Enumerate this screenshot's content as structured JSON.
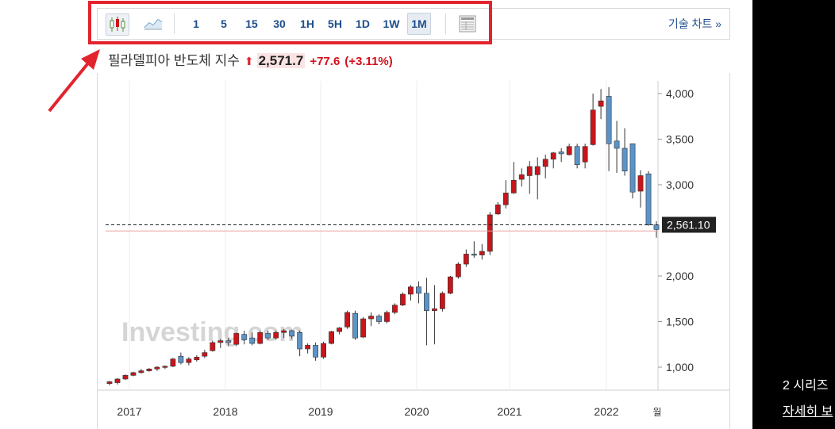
{
  "toolbar": {
    "intervals": [
      "1",
      "5",
      "15",
      "30",
      "1H",
      "5H",
      "1D",
      "1W",
      "1M"
    ],
    "active_interval": "1M",
    "tech_chart_label": "기술 차트 »",
    "icons": [
      "candlestick-icon",
      "line-chart-icon",
      "table-view-icon"
    ]
  },
  "header": {
    "name": "필라델피아 반도체 지수",
    "arrow": "⬆",
    "price": "2,571.7",
    "change": "+77.6",
    "change_pct": "(+3.11%)"
  },
  "colors": {
    "up": "#c8151b",
    "down": "#5b93c7",
    "highlight": "#e2242f"
  },
  "watermark": "Investing.com",
  "side": {
    "line1": "2 시리즈",
    "line2": "자세히 보"
  },
  "chart_data": {
    "type": "candlestick",
    "x_ticks": [
      "2017",
      "2018",
      "2019",
      "2020",
      "2021",
      "2022",
      "월"
    ],
    "y_ticks": [
      "4,000",
      "3,500",
      "3,000",
      "2,000",
      "1,500",
      "1,000"
    ],
    "y_tick_values": [
      4000,
      3500,
      3000,
      2000,
      1500,
      1000
    ],
    "ylim": [
      700,
      4250
    ],
    "last_price_label": "2,561.10",
    "last_price": 2561.1,
    "prev_close": 2494,
    "candles": [
      {
        "o": 820,
        "h": 850,
        "l": 800,
        "c": 840
      },
      {
        "o": 830,
        "h": 880,
        "l": 810,
        "c": 870
      },
      {
        "o": 870,
        "h": 920,
        "l": 860,
        "c": 910
      },
      {
        "o": 910,
        "h": 950,
        "l": 900,
        "c": 940
      },
      {
        "o": 940,
        "h": 980,
        "l": 930,
        "c": 960
      },
      {
        "o": 960,
        "h": 990,
        "l": 950,
        "c": 980
      },
      {
        "o": 980,
        "h": 1010,
        "l": 960,
        "c": 1000
      },
      {
        "o": 1000,
        "h": 1020,
        "l": 980,
        "c": 1010
      },
      {
        "o": 1010,
        "h": 1100,
        "l": 1000,
        "c": 1090
      },
      {
        "o": 1120,
        "h": 1160,
        "l": 1030,
        "c": 1050
      },
      {
        "o": 1050,
        "h": 1110,
        "l": 1020,
        "c": 1090
      },
      {
        "o": 1080,
        "h": 1130,
        "l": 1060,
        "c": 1110
      },
      {
        "o": 1120,
        "h": 1190,
        "l": 1100,
        "c": 1160
      },
      {
        "o": 1180,
        "h": 1290,
        "l": 1170,
        "c": 1270
      },
      {
        "o": 1270,
        "h": 1310,
        "l": 1210,
        "c": 1290
      },
      {
        "o": 1290,
        "h": 1320,
        "l": 1230,
        "c": 1270
      },
      {
        "o": 1250,
        "h": 1380,
        "l": 1230,
        "c": 1370
      },
      {
        "o": 1360,
        "h": 1400,
        "l": 1250,
        "c": 1300
      },
      {
        "o": 1320,
        "h": 1380,
        "l": 1240,
        "c": 1260
      },
      {
        "o": 1260,
        "h": 1400,
        "l": 1250,
        "c": 1380
      },
      {
        "o": 1370,
        "h": 1400,
        "l": 1300,
        "c": 1320
      },
      {
        "o": 1320,
        "h": 1400,
        "l": 1300,
        "c": 1380
      },
      {
        "o": 1380,
        "h": 1420,
        "l": 1320,
        "c": 1400
      },
      {
        "o": 1400,
        "h": 1410,
        "l": 1310,
        "c": 1340
      },
      {
        "o": 1380,
        "h": 1400,
        "l": 1120,
        "c": 1200
      },
      {
        "o": 1200,
        "h": 1260,
        "l": 1150,
        "c": 1240
      },
      {
        "o": 1240,
        "h": 1270,
        "l": 1070,
        "c": 1110
      },
      {
        "o": 1110,
        "h": 1280,
        "l": 1090,
        "c": 1260
      },
      {
        "o": 1260,
        "h": 1400,
        "l": 1250,
        "c": 1390
      },
      {
        "o": 1390,
        "h": 1440,
        "l": 1360,
        "c": 1430
      },
      {
        "o": 1440,
        "h": 1620,
        "l": 1420,
        "c": 1600
      },
      {
        "o": 1590,
        "h": 1620,
        "l": 1300,
        "c": 1320
      },
      {
        "o": 1330,
        "h": 1550,
        "l": 1320,
        "c": 1530
      },
      {
        "o": 1530,
        "h": 1600,
        "l": 1450,
        "c": 1560
      },
      {
        "o": 1560,
        "h": 1580,
        "l": 1470,
        "c": 1500
      },
      {
        "o": 1500,
        "h": 1620,
        "l": 1480,
        "c": 1600
      },
      {
        "o": 1600,
        "h": 1700,
        "l": 1580,
        "c": 1680
      },
      {
        "o": 1680,
        "h": 1820,
        "l": 1670,
        "c": 1800
      },
      {
        "o": 1800,
        "h": 1900,
        "l": 1730,
        "c": 1880
      },
      {
        "o": 1880,
        "h": 1940,
        "l": 1700,
        "c": 1810
      },
      {
        "o": 1810,
        "h": 1980,
        "l": 1240,
        "c": 1620
      },
      {
        "o": 1620,
        "h": 1900,
        "l": 1250,
        "c": 1640
      },
      {
        "o": 1640,
        "h": 1830,
        "l": 1610,
        "c": 1810
      },
      {
        "o": 1810,
        "h": 2000,
        "l": 1800,
        "c": 1990
      },
      {
        "o": 1990,
        "h": 2150,
        "l": 1970,
        "c": 2130
      },
      {
        "o": 2130,
        "h": 2290,
        "l": 2100,
        "c": 2240
      },
      {
        "o": 2240,
        "h": 2380,
        "l": 2200,
        "c": 2230
      },
      {
        "o": 2230,
        "h": 2350,
        "l": 2180,
        "c": 2270
      },
      {
        "o": 2270,
        "h": 2700,
        "l": 2230,
        "c": 2670
      },
      {
        "o": 2680,
        "h": 2810,
        "l": 2670,
        "c": 2780
      },
      {
        "o": 2780,
        "h": 3050,
        "l": 2740,
        "c": 2910
      },
      {
        "o": 2910,
        "h": 3250,
        "l": 2900,
        "c": 3050
      },
      {
        "o": 3060,
        "h": 3180,
        "l": 2980,
        "c": 3110
      },
      {
        "o": 3100,
        "h": 3260,
        "l": 2900,
        "c": 3200
      },
      {
        "o": 3110,
        "h": 3300,
        "l": 2840,
        "c": 3200
      },
      {
        "o": 3200,
        "h": 3330,
        "l": 3070,
        "c": 3280
      },
      {
        "o": 3280,
        "h": 3360,
        "l": 3180,
        "c": 3350
      },
      {
        "o": 3360,
        "h": 3400,
        "l": 3250,
        "c": 3340
      },
      {
        "o": 3330,
        "h": 3450,
        "l": 3320,
        "c": 3420
      },
      {
        "o": 3420,
        "h": 3450,
        "l": 3180,
        "c": 3220
      },
      {
        "o": 3250,
        "h": 3450,
        "l": 3180,
        "c": 3420
      },
      {
        "o": 3440,
        "h": 4000,
        "l": 3430,
        "c": 3820
      },
      {
        "o": 3860,
        "h": 4050,
        "l": 3720,
        "c": 3920
      },
      {
        "o": 3970,
        "h": 4070,
        "l": 3150,
        "c": 3450
      },
      {
        "o": 3480,
        "h": 3700,
        "l": 3130,
        "c": 3400
      },
      {
        "o": 3400,
        "h": 3620,
        "l": 3100,
        "c": 3150
      },
      {
        "o": 3450,
        "h": 3450,
        "l": 2850,
        "c": 2920
      },
      {
        "o": 2930,
        "h": 3160,
        "l": 2750,
        "c": 3100
      },
      {
        "o": 3120,
        "h": 3150,
        "l": 2550,
        "c": 2560
      },
      {
        "o": 2560,
        "h": 2600,
        "l": 2420,
        "c": 2510
      }
    ]
  }
}
